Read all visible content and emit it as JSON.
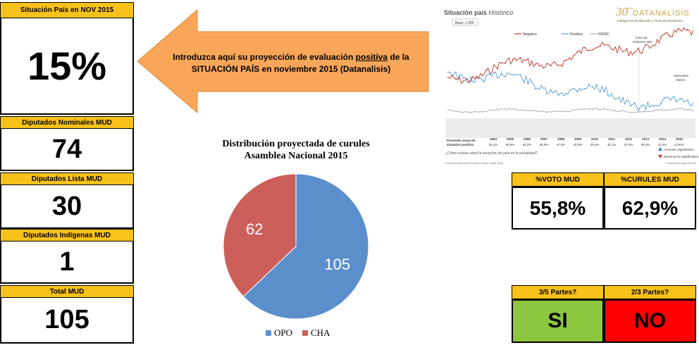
{
  "left_panel": {
    "situacion": {
      "label": "Situación País en NOV 2015",
      "value": "15%"
    },
    "nominales": {
      "label": "Diputados Nominales MUD",
      "value": "74"
    },
    "lista": {
      "label": "Diputados Lista MUD",
      "value": "30"
    },
    "indigenas": {
      "label": "Diputados Indígenas MUD",
      "value": "1"
    },
    "total": {
      "label": "Total MUD",
      "value": "105"
    }
  },
  "arrow": {
    "line1_pre": "Introduzca aquí su proyección de  evaluación ",
    "line1_u": "positiva",
    "line1_post": " de la",
    "line2": "SITUACIÓN PAÍS en noviembre 2015 (Datanalisis)",
    "color": "#f8a75a"
  },
  "historical_chart": {
    "title": "Situación país",
    "title_italic": "Histórico",
    "base": "Base: 1.000",
    "brand": "DATANALISIS",
    "brand_years": "30",
    "brand_years_suffix": "años",
    "brand_tagline": "Inteligencia de Mercado y Toma de Decisiones",
    "legend": [
      "Negativa",
      "Positiva",
      "NS/NC"
    ],
    "annotation_1": "Inicio de",
    "annotation_1b": "Gobierno NM",
    "annotation_2": "Sanciones",
    "annotation_2b": "EEUU",
    "row_label_1": "Promedio anual de",
    "row_label_2": "situación positiva",
    "years": [
      "2004",
      "2005",
      "2006",
      "2007",
      "2008",
      "2009",
      "2010",
      "2011",
      "2012",
      "2013",
      "2014",
      "2015"
    ],
    "averages": [
      "45,1%",
      "50,9%",
      "63,2%",
      "55,8%",
      "47,6%",
      "45,3%",
      "35,6%",
      "45,1%",
      "37,0%",
      "35,0%",
      "10,4%",
      "14,6%*"
    ],
    "question": "¿Cómo evalúa usted la situación del país en la actualidad?",
    "source": "Encuesta Nacional Ómnibus Mayo-Junio 2015",
    "source_right": "* Datos hasta mayo de 2015",
    "sig_up": "Aumento significativo",
    "sig_down": "Disminución significativa",
    "colors": {
      "negativa": "#c0392b",
      "positiva": "#5b9bd5",
      "nsnc": "#b0b0b0"
    }
  },
  "chart_data": {
    "type": "pie",
    "title": "Distribución proyectada de curules\nAsamblea Nacional 2015",
    "title_line1": "Distribución proyectada de curules",
    "title_line2": "Asamblea Nacional 2015",
    "categories": [
      "OPO",
      "CHA"
    ],
    "values": [
      105,
      62
    ],
    "colors": [
      "#5b8fcb",
      "#cd5f5a"
    ],
    "legend_position": "bottom"
  },
  "right_tables": {
    "voto": {
      "label": "%VOTO MUD",
      "value": "55,8%"
    },
    "curules": {
      "label": "%CURULES MUD",
      "value": "62,9%"
    },
    "tres_quintos": {
      "label": "3/5 Partes?",
      "value": "SI",
      "color": "#8dc63f"
    },
    "dos_tercios": {
      "label": "2/3 Partes?",
      "value": "NO",
      "color": "#ff0000"
    }
  }
}
